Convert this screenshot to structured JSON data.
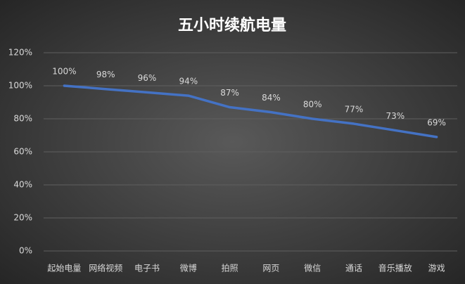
{
  "chart_data": {
    "type": "line",
    "title": "五小时续航电量",
    "categories": [
      "起始电量",
      "网络视频",
      "电子书",
      "微博",
      "拍照",
      "网页",
      "微信",
      "通话",
      "音乐播放",
      "游戏"
    ],
    "series": [
      {
        "color": "#4472c4",
        "values": [
          100,
          98,
          96,
          94,
          87,
          84,
          80,
          77,
          73,
          69
        ],
        "value_labels": [
          "100%",
          "98%",
          "96%",
          "94%",
          "87%",
          "84%",
          "80%",
          "77%",
          "73%",
          "69%"
        ]
      }
    ],
    "ylim": [
      0,
      120
    ],
    "yticks": [
      {
        "value": 0,
        "label": "0%"
      },
      {
        "value": 20,
        "label": "20%"
      },
      {
        "value": 40,
        "label": "40%"
      },
      {
        "value": 60,
        "label": "60%"
      },
      {
        "value": 80,
        "label": "80%"
      },
      {
        "value": 100,
        "label": "100%"
      },
      {
        "value": 120,
        "label": "120%"
      }
    ],
    "grid": true
  }
}
